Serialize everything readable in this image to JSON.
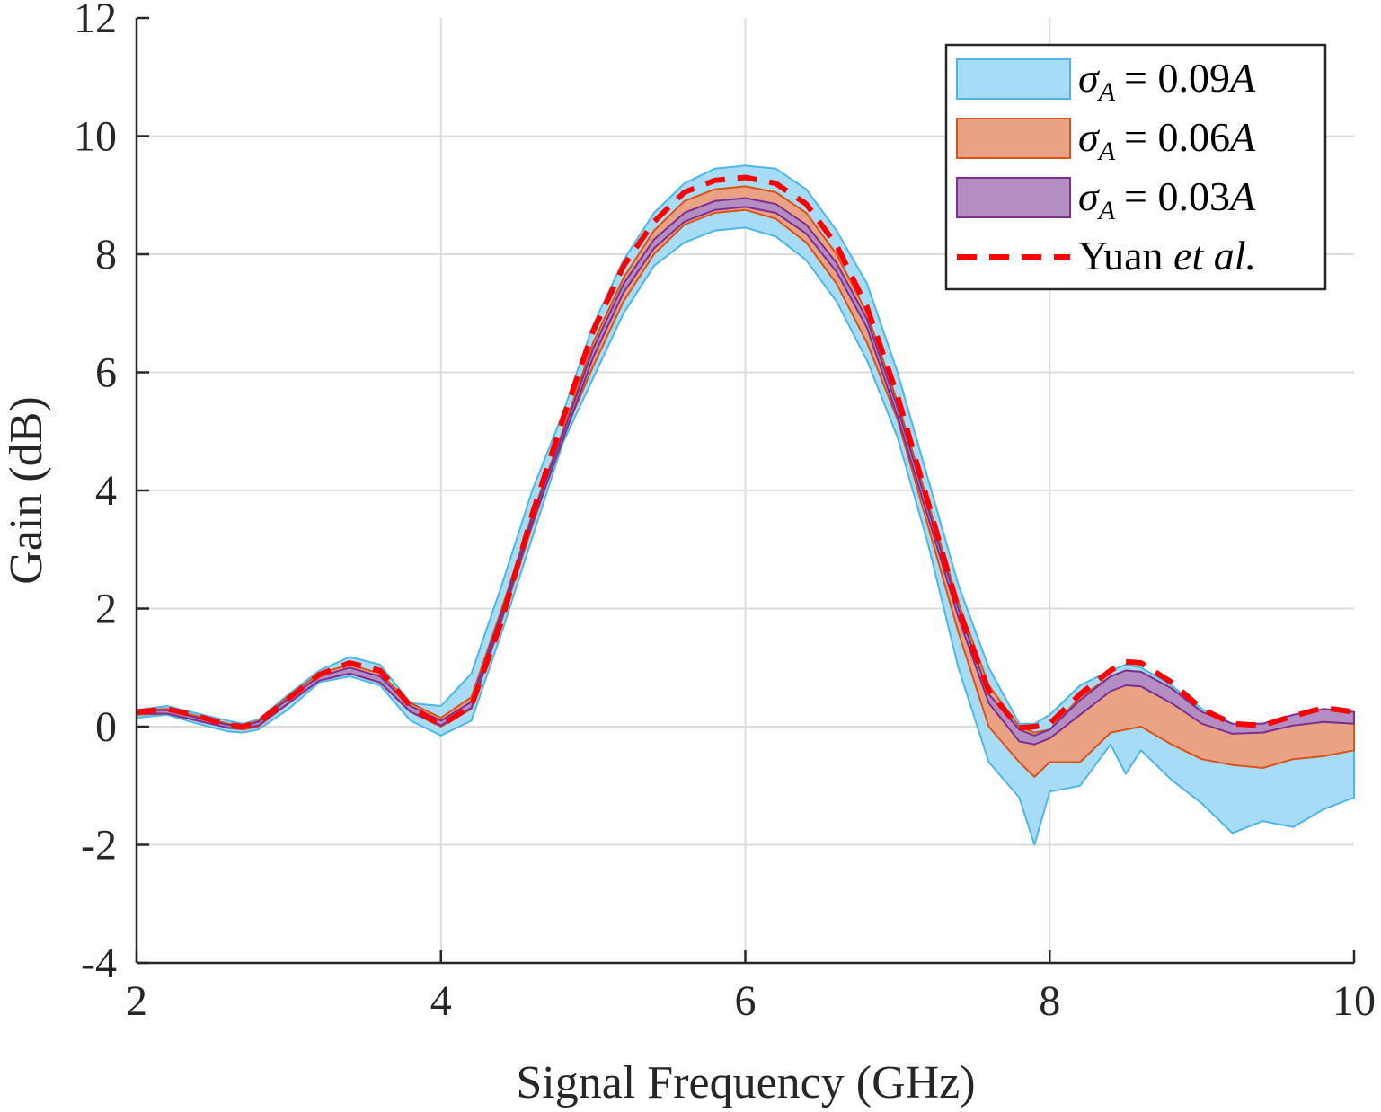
{
  "chart_data": {
    "type": "area",
    "xlabel": "Signal Frequency (GHz)",
    "ylabel": "Gain (dB)",
    "xlim": [
      2,
      10
    ],
    "ylim": [
      -4,
      12
    ],
    "xticks": [
      2,
      4,
      6,
      8,
      10
    ],
    "yticks": [
      -4,
      -2,
      0,
      2,
      4,
      6,
      8,
      10,
      12
    ],
    "xtick_labels": [
      "2",
      "4",
      "6",
      "8",
      "10"
    ],
    "ytick_labels": [
      "-4",
      "-2",
      "0",
      "2",
      "4",
      "6",
      "8",
      "10",
      "12"
    ],
    "grid": true,
    "legend_position": "top-right",
    "x": [
      2.0,
      2.2,
      2.4,
      2.6,
      2.7,
      2.8,
      3.0,
      3.2,
      3.4,
      3.6,
      3.8,
      4.0,
      4.2,
      4.4,
      4.6,
      4.8,
      5.0,
      5.2,
      5.4,
      5.6,
      5.8,
      6.0,
      6.2,
      6.4,
      6.6,
      6.8,
      7.0,
      7.2,
      7.4,
      7.6,
      7.8,
      7.9,
      8.0,
      8.2,
      8.4,
      8.5,
      8.6,
      8.8,
      9.0,
      9.2,
      9.4,
      9.6,
      9.8,
      10.0
    ],
    "series": [
      {
        "name": "σ_A = 0.09A",
        "legend_sigma": "σ",
        "legend_sub": "A",
        "legend_rhs": "= 0.09",
        "legend_var": "A",
        "fill": "#a6dcf5",
        "edge": "#4db6e6",
        "upper": [
          0.28,
          0.35,
          0.22,
          0.1,
          0.05,
          0.12,
          0.55,
          0.95,
          1.18,
          1.05,
          0.4,
          0.35,
          0.9,
          2.4,
          4.0,
          5.3,
          6.8,
          7.9,
          8.7,
          9.2,
          9.45,
          9.5,
          9.45,
          9.1,
          8.4,
          7.5,
          6.0,
          4.2,
          2.4,
          1.0,
          0.05,
          0.05,
          0.2,
          0.7,
          0.95,
          1.05,
          1.0,
          0.7,
          0.3,
          0.05,
          0.05,
          0.2,
          0.3,
          0.25
        ],
        "lower": [
          0.15,
          0.2,
          0.05,
          -0.08,
          -0.1,
          -0.05,
          0.3,
          0.75,
          0.85,
          0.7,
          0.1,
          -0.15,
          0.1,
          1.6,
          3.2,
          4.8,
          5.9,
          7.0,
          7.8,
          8.2,
          8.4,
          8.45,
          8.3,
          7.9,
          7.2,
          6.2,
          4.9,
          3.1,
          1.0,
          -0.6,
          -1.2,
          -2.0,
          -1.1,
          -1.0,
          -0.3,
          -0.8,
          -0.4,
          -0.9,
          -1.3,
          -1.8,
          -1.6,
          -1.7,
          -1.4,
          -1.2
        ]
      },
      {
        "name": "σ_A = 0.06A",
        "legend_sigma": "σ",
        "legend_sub": "A",
        "legend_rhs": "= 0.06",
        "legend_var": "A",
        "fill": "#e9a384",
        "edge": "#d95319",
        "upper": [
          0.28,
          0.3,
          0.18,
          0.05,
          0.02,
          0.1,
          0.52,
          0.9,
          1.05,
          0.9,
          0.4,
          0.15,
          0.5,
          2.0,
          3.6,
          5.0,
          6.5,
          7.6,
          8.4,
          8.9,
          9.1,
          9.15,
          9.05,
          8.7,
          8.0,
          7.0,
          5.5,
          3.8,
          2.1,
          0.7,
          0.0,
          -0.1,
          -0.05,
          0.5,
          0.85,
          0.95,
          0.92,
          0.65,
          0.25,
          0.0,
          0.0,
          0.15,
          0.25,
          0.2
        ],
        "lower": [
          0.2,
          0.22,
          0.1,
          -0.02,
          -0.05,
          0.0,
          0.4,
          0.8,
          0.9,
          0.75,
          0.25,
          0.0,
          0.3,
          1.8,
          3.4,
          4.9,
          6.1,
          7.2,
          8.0,
          8.5,
          8.7,
          8.75,
          8.6,
          8.2,
          7.5,
          6.5,
          5.2,
          3.4,
          1.6,
          0.0,
          -0.6,
          -0.85,
          -0.6,
          -0.6,
          -0.1,
          -0.05,
          0.0,
          -0.3,
          -0.55,
          -0.65,
          -0.7,
          -0.55,
          -0.5,
          -0.4
        ]
      },
      {
        "name": "σ_A = 0.03A",
        "legend_sigma": "σ",
        "legend_sub": "A",
        "legend_rhs": "= 0.03",
        "legend_var": "A",
        "fill": "#b48dc2",
        "edge": "#7e2f8e",
        "upper": [
          0.27,
          0.28,
          0.15,
          0.03,
          0.01,
          0.08,
          0.48,
          0.85,
          1.0,
          0.85,
          0.35,
          0.1,
          0.42,
          1.95,
          3.55,
          4.95,
          6.4,
          7.5,
          8.25,
          8.7,
          8.9,
          8.95,
          8.85,
          8.5,
          7.85,
          6.9,
          5.4,
          3.7,
          2.0,
          0.55,
          -0.05,
          -0.15,
          -0.05,
          0.45,
          0.85,
          0.95,
          0.93,
          0.65,
          0.25,
          0.05,
          0.05,
          0.2,
          0.3,
          0.25
        ],
        "lower": [
          0.22,
          0.22,
          0.1,
          -0.02,
          -0.03,
          0.02,
          0.4,
          0.78,
          0.9,
          0.75,
          0.25,
          0.02,
          0.32,
          1.85,
          3.45,
          4.85,
          6.25,
          7.35,
          8.1,
          8.55,
          8.75,
          8.8,
          8.7,
          8.35,
          7.7,
          6.75,
          5.25,
          3.55,
          1.85,
          0.4,
          -0.25,
          -0.3,
          -0.2,
          0.2,
          0.6,
          0.7,
          0.68,
          0.4,
          0.05,
          -0.12,
          -0.1,
          0.02,
          0.08,
          0.05
        ]
      }
    ],
    "reference": {
      "name": "Yuan et al.",
      "legend_main": "Yuan ",
      "legend_italic": "et al.",
      "color": "#ff0000",
      "values": [
        0.25,
        0.3,
        0.18,
        0.03,
        0.0,
        0.08,
        0.48,
        0.88,
        1.08,
        0.95,
        0.35,
        0.02,
        0.35,
        1.8,
        3.6,
        5.2,
        6.7,
        7.8,
        8.55,
        9.05,
        9.25,
        9.3,
        9.2,
        8.85,
        8.15,
        7.1,
        5.6,
        3.8,
        2.0,
        0.6,
        -0.02,
        0.0,
        0.05,
        0.55,
        0.95,
        1.1,
        1.08,
        0.75,
        0.3,
        0.05,
        0.02,
        0.18,
        0.32,
        0.25
      ]
    }
  }
}
